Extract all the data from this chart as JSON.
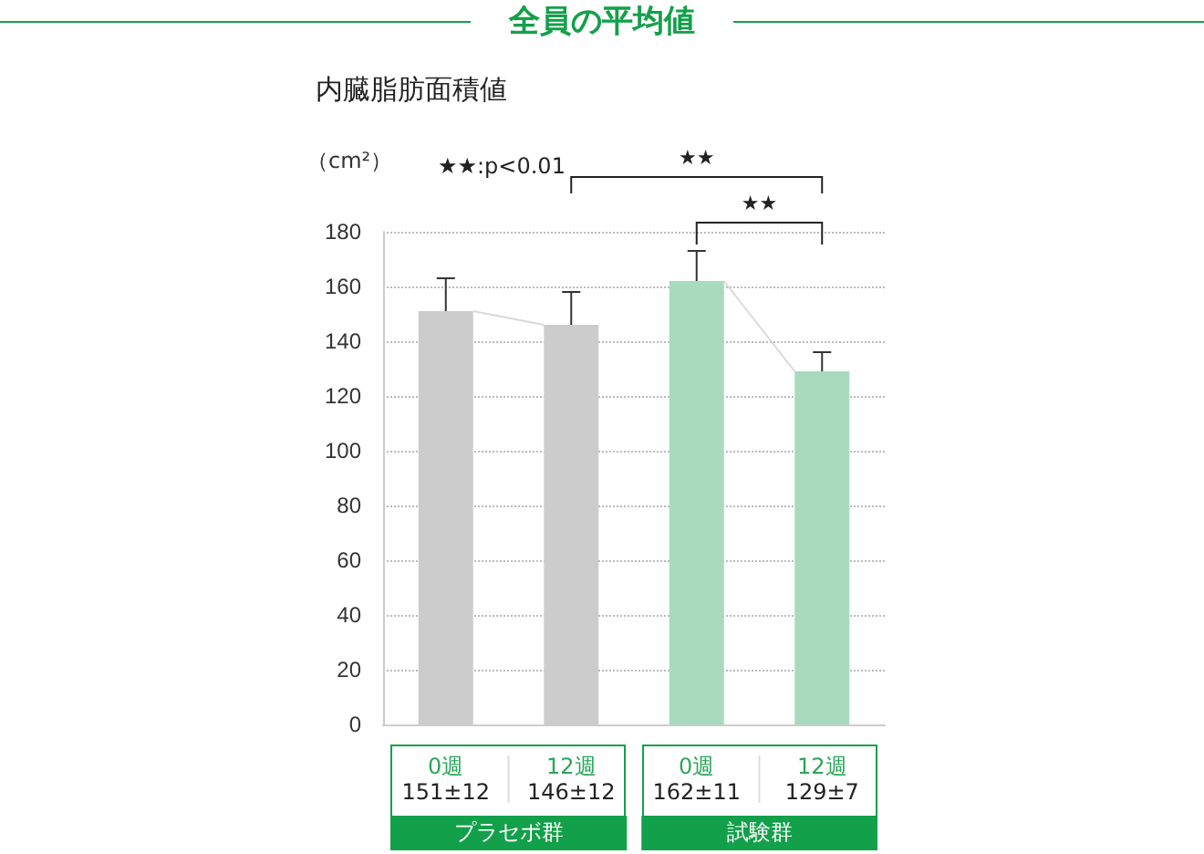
{
  "chart_data": {
    "type": "bar",
    "title": "全員の平均値",
    "subtitle": "内臓脂肪面積値",
    "ylabel": "（cm²）",
    "categories": [
      "0週",
      "12週",
      "0週",
      "12週"
    ],
    "series": [
      {
        "colors": [
          "#cccccc",
          "#cccccc",
          "#a8dbbe",
          "#a8dbbe"
        ],
        "values": [
          151,
          146,
          162,
          129
        ],
        "errors": [
          12,
          12,
          11,
          7
        ],
        "value_labels": [
          "151±12",
          "146±12",
          "162±11",
          "129±7"
        ]
      }
    ],
    "annotations": [
      "★★:p<0.01",
      "★★",
      "★★",
      "プラセボ群",
      "試験群"
    ],
    "ylim": [
      0,
      180
    ],
    "yticks": [
      0,
      20,
      40,
      60,
      80,
      100,
      120,
      140,
      160,
      180
    ],
    "grid": "y"
  }
}
